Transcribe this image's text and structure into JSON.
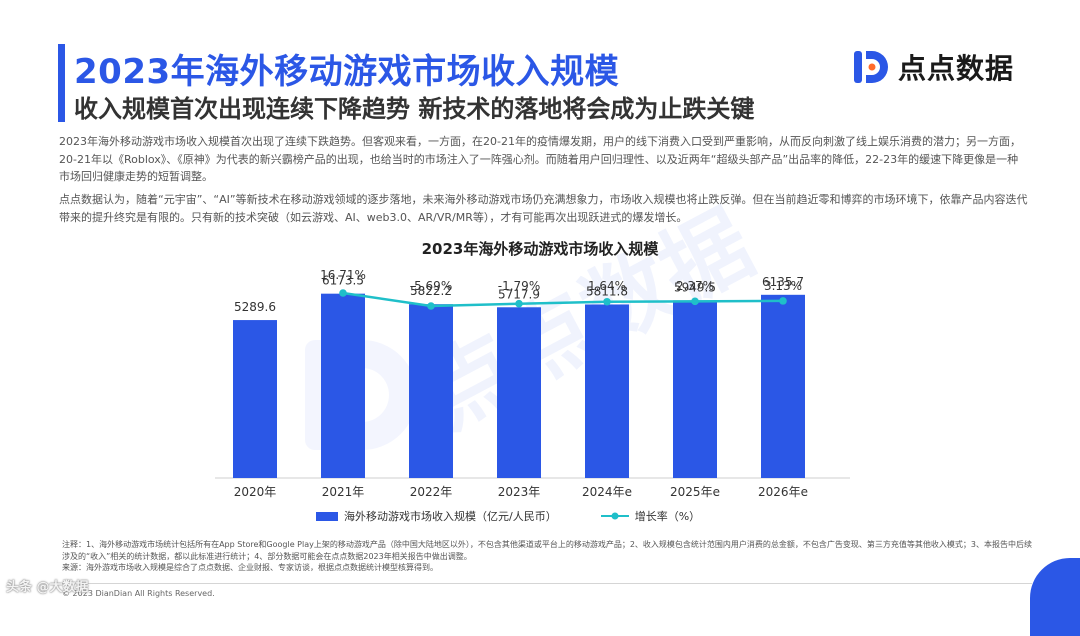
{
  "header": {
    "title": "2023年海外移动游戏市场收入规模",
    "subtitle": "收入规模首次出现连续下降趋势 新技术的落地将会成为止跌关键",
    "logo_text": "点点数据"
  },
  "body": {
    "paragraph1": "2023年海外移动游戏市场收入规模首次出现了连续下跌趋势。但客观来看，一方面，在20-21年的疫情爆发期，用户的线下消费入口受到严重影响，从而反向刺激了线上娱乐消费的潜力；另一方面，20-21年以《Roblox》、《原神》为代表的新兴霸榜产品的出现，也给当时的市场注入了一阵强心剂。而随着用户回归理性、以及近两年“超级头部产品”出品率的降低，22-23年的缓速下降更像是一种市场回归健康走势的短暂调整。",
    "paragraph2": "点点数据认为，随着“元宇宙”、“AI”等新技术在移动游戏领域的逐步落地，未来海外移动游戏市场仍充满想象力，市场收入规模也将止跌反弹。但在当前趋近零和博弈的市场环境下，依靠产品内容迭代带来的提升终究是有限的。只有新的技术突破（如云游戏、AI、web3.0、AR/VR/MR等），才有可能再次出现跃进式的爆发增长。"
  },
  "watermark": "点点数据",
  "chart_data": {
    "type": "bar",
    "title": "2023年海外移动游戏市场收入规模",
    "categories": [
      "2020年",
      "2021年",
      "2022年",
      "2023年",
      "2024年e",
      "2025年e",
      "2026年e"
    ],
    "series": [
      {
        "name": "海外移动游戏市场收入规模（亿元/人民币）",
        "type": "bar",
        "color": "#2b57e6",
        "values": [
          5289.6,
          6173.5,
          5822.2,
          5717.9,
          5811.8,
          5949.5,
          6135.7
        ],
        "labels": [
          "5289.6",
          "6173.5",
          "5822.2",
          "5717.9",
          "5811.8",
          "5949.5",
          "6135.7"
        ]
      },
      {
        "name": "增长率（%）",
        "type": "line",
        "color": "#1fbfc9",
        "values": [
          null,
          16.71,
          -5.69,
          -1.79,
          1.64,
          2.37,
          3.13
        ],
        "labels": [
          "",
          "16.71%",
          "-5.69%",
          "-1.79%",
          "1.64%",
          "2.37%",
          "3.13%"
        ]
      }
    ],
    "ylim": [
      0,
      7000
    ],
    "xlabel": "",
    "ylabel": "",
    "legend": "bottom"
  },
  "footer": {
    "note": "注释：1、海外移动游戏市场统计包括所有在App Store和Google Play上架的移动游戏产品（除中国大陆地区以外），不包含其他渠道或平台上的移动游戏产品；2、收入规模包含统计范围内用户消费的总金额，不包含广告变现、第三方充值等其他收入模式；3、本报告中后续涉及的“收入”相关的统计数据，都以此标准进行统计；4、部分数据可能会在点点数据2023年相关报告中做出调整。",
    "source": "来源：海外游戏市场收入规模是综合了点点数据、企业财报、专家访谈，根据点点数据统计模型核算得到。",
    "copyright": "© 2023 DianDian All Rights Reserved.",
    "toutiao_mark": "头条 @大数据"
  }
}
